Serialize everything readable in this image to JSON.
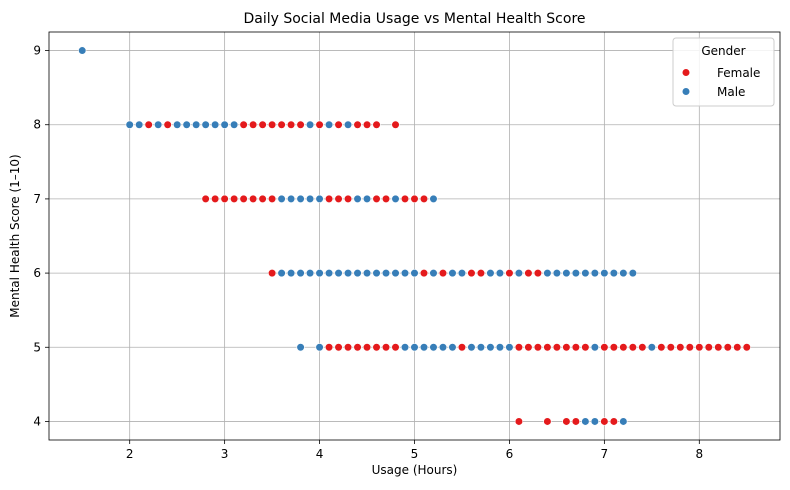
{
  "chart_data": {
    "type": "scatter",
    "title": "Daily Social Media Usage vs Mental Health Score",
    "xlabel": "Usage (Hours)",
    "ylabel": "Mental Health Score (1–10)",
    "xlim": [
      1.15,
      8.85
    ],
    "ylim": [
      3.75,
      9.25
    ],
    "xticks": [
      2,
      3,
      4,
      5,
      6,
      7,
      8
    ],
    "yticks": [
      4,
      5,
      6,
      7,
      8,
      9
    ],
    "grid": true,
    "legend": {
      "title": "Gender",
      "placement": "top-right"
    },
    "series": [
      {
        "name": "Female",
        "color": "#e41a1c",
        "points": [
          [
            2.2,
            8
          ],
          [
            2.4,
            8
          ],
          [
            3.2,
            8
          ],
          [
            3.3,
            8
          ],
          [
            3.4,
            8
          ],
          [
            3.5,
            8
          ],
          [
            3.6,
            8
          ],
          [
            3.7,
            8
          ],
          [
            3.8,
            8
          ],
          [
            4.0,
            8
          ],
          [
            4.2,
            8
          ],
          [
            4.4,
            8
          ],
          [
            4.5,
            8
          ],
          [
            4.6,
            8
          ],
          [
            4.8,
            8
          ],
          [
            2.8,
            7
          ],
          [
            2.9,
            7
          ],
          [
            3.0,
            7
          ],
          [
            3.1,
            7
          ],
          [
            3.2,
            7
          ],
          [
            3.3,
            7
          ],
          [
            3.4,
            7
          ],
          [
            3.5,
            7
          ],
          [
            4.1,
            7
          ],
          [
            4.2,
            7
          ],
          [
            4.3,
            7
          ],
          [
            4.6,
            7
          ],
          [
            4.7,
            7
          ],
          [
            4.9,
            7
          ],
          [
            5.0,
            7
          ],
          [
            5.1,
            7
          ],
          [
            3.5,
            6
          ],
          [
            5.1,
            6
          ],
          [
            5.3,
            6
          ],
          [
            5.6,
            6
          ],
          [
            5.7,
            6
          ],
          [
            6.0,
            6
          ],
          [
            6.2,
            6
          ],
          [
            6.3,
            6
          ],
          [
            4.1,
            5
          ],
          [
            4.2,
            5
          ],
          [
            4.3,
            5
          ],
          [
            4.4,
            5
          ],
          [
            4.5,
            5
          ],
          [
            4.6,
            5
          ],
          [
            4.7,
            5
          ],
          [
            4.8,
            5
          ],
          [
            5.5,
            5
          ],
          [
            6.1,
            5
          ],
          [
            6.2,
            5
          ],
          [
            6.3,
            5
          ],
          [
            6.4,
            5
          ],
          [
            6.5,
            5
          ],
          [
            6.6,
            5
          ],
          [
            6.7,
            5
          ],
          [
            6.8,
            5
          ],
          [
            7.0,
            5
          ],
          [
            7.1,
            5
          ],
          [
            7.2,
            5
          ],
          [
            7.3,
            5
          ],
          [
            7.4,
            5
          ],
          [
            7.6,
            5
          ],
          [
            7.7,
            5
          ],
          [
            7.8,
            5
          ],
          [
            7.9,
            5
          ],
          [
            8.0,
            5
          ],
          [
            8.1,
            5
          ],
          [
            8.2,
            5
          ],
          [
            8.3,
            5
          ],
          [
            8.4,
            5
          ],
          [
            8.5,
            5
          ],
          [
            6.1,
            4
          ],
          [
            6.4,
            4
          ],
          [
            6.6,
            4
          ],
          [
            6.7,
            4
          ],
          [
            7.0,
            4
          ],
          [
            7.1,
            4
          ]
        ]
      },
      {
        "name": "Male",
        "color": "#377eb8",
        "points": [
          [
            1.5,
            9
          ],
          [
            2.0,
            8
          ],
          [
            2.1,
            8
          ],
          [
            2.3,
            8
          ],
          [
            2.5,
            8
          ],
          [
            2.6,
            8
          ],
          [
            2.7,
            8
          ],
          [
            2.8,
            8
          ],
          [
            2.9,
            8
          ],
          [
            3.0,
            8
          ],
          [
            3.1,
            8
          ],
          [
            3.9,
            8
          ],
          [
            4.1,
            8
          ],
          [
            4.3,
            8
          ],
          [
            3.6,
            7
          ],
          [
            3.7,
            7
          ],
          [
            3.8,
            7
          ],
          [
            3.9,
            7
          ],
          [
            4.0,
            7
          ],
          [
            4.4,
            7
          ],
          [
            4.5,
            7
          ],
          [
            4.8,
            7
          ],
          [
            5.2,
            7
          ],
          [
            3.6,
            6
          ],
          [
            3.7,
            6
          ],
          [
            3.8,
            6
          ],
          [
            3.9,
            6
          ],
          [
            4.0,
            6
          ],
          [
            4.1,
            6
          ],
          [
            4.2,
            6
          ],
          [
            4.3,
            6
          ],
          [
            4.4,
            6
          ],
          [
            4.5,
            6
          ],
          [
            4.6,
            6
          ],
          [
            4.7,
            6
          ],
          [
            4.8,
            6
          ],
          [
            4.9,
            6
          ],
          [
            5.0,
            6
          ],
          [
            5.2,
            6
          ],
          [
            5.4,
            6
          ],
          [
            5.5,
            6
          ],
          [
            5.8,
            6
          ],
          [
            5.9,
            6
          ],
          [
            6.1,
            6
          ],
          [
            6.4,
            6
          ],
          [
            6.5,
            6
          ],
          [
            6.6,
            6
          ],
          [
            6.7,
            6
          ],
          [
            6.8,
            6
          ],
          [
            6.9,
            6
          ],
          [
            7.0,
            6
          ],
          [
            7.1,
            6
          ],
          [
            7.2,
            6
          ],
          [
            7.3,
            6
          ],
          [
            3.8,
            5
          ],
          [
            4.0,
            5
          ],
          [
            4.9,
            5
          ],
          [
            5.0,
            5
          ],
          [
            5.1,
            5
          ],
          [
            5.2,
            5
          ],
          [
            5.3,
            5
          ],
          [
            5.4,
            5
          ],
          [
            5.6,
            5
          ],
          [
            5.7,
            5
          ],
          [
            5.8,
            5
          ],
          [
            5.9,
            5
          ],
          [
            6.0,
            5
          ],
          [
            6.9,
            5
          ],
          [
            7.5,
            5
          ],
          [
            6.8,
            4
          ],
          [
            6.9,
            4
          ],
          [
            7.2,
            4
          ]
        ]
      }
    ]
  }
}
